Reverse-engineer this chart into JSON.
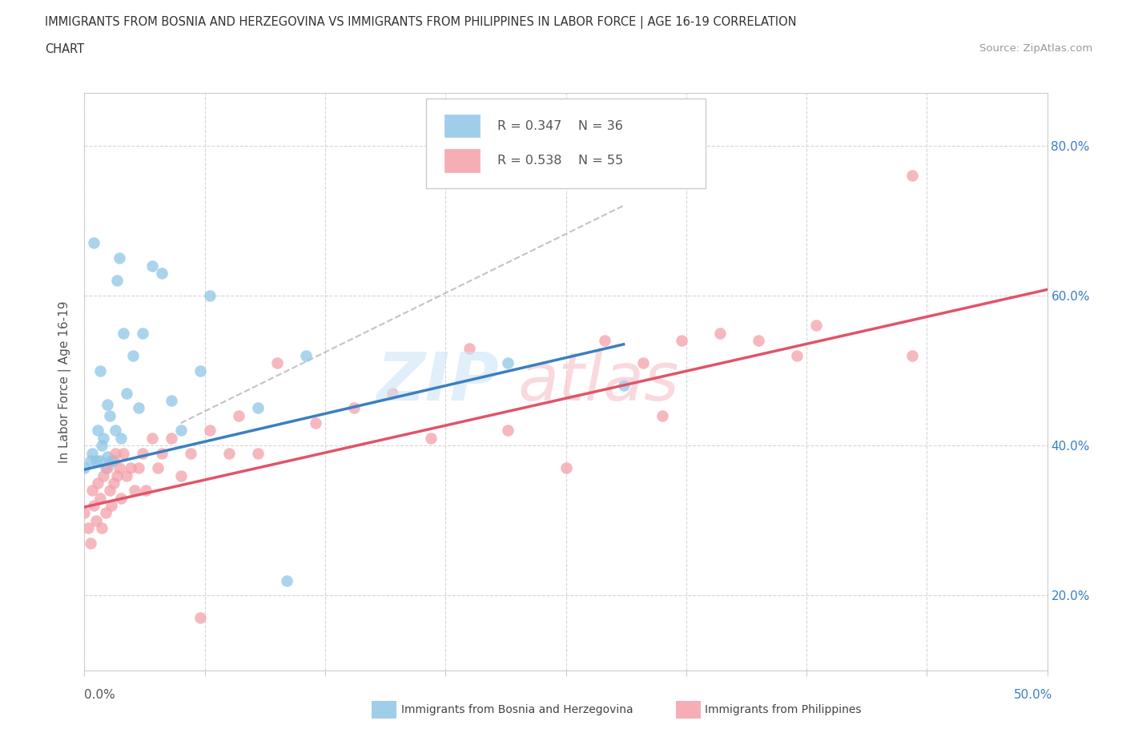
{
  "title_line1": "IMMIGRANTS FROM BOSNIA AND HERZEGOVINA VS IMMIGRANTS FROM PHILIPPINES IN LABOR FORCE | AGE 16-19 CORRELATION",
  "title_line2": "CHART",
  "source": "Source: ZipAtlas.com",
  "ylabel": "In Labor Force | Age 16-19",
  "y_tick_values": [
    0.2,
    0.4,
    0.6,
    0.8
  ],
  "xlim": [
    0.0,
    0.5
  ],
  "ylim": [
    0.1,
    0.87
  ],
  "legend_r1": "R = 0.347",
  "legend_n1": "N = 36",
  "legend_r2": "R = 0.538",
  "legend_n2": "N = 55",
  "bosnia_color": "#8ec6e6",
  "philippines_color": "#f4a0aa",
  "bosnia_line_color": "#3a7fc1",
  "philippines_line_color": "#e0546a",
  "bosnia_line_x": [
    0.0,
    0.28
  ],
  "bosnia_line_y": [
    0.368,
    0.535
  ],
  "philippines_line_x": [
    0.0,
    0.5
  ],
  "philippines_line_y": [
    0.318,
    0.608
  ],
  "dash_line_x": [
    0.05,
    0.28
  ],
  "dash_line_y": [
    0.43,
    0.72
  ],
  "bosnia_scatter_x": [
    0.0,
    0.003,
    0.004,
    0.005,
    0.006,
    0.007,
    0.008,
    0.008,
    0.009,
    0.01,
    0.011,
    0.012,
    0.012,
    0.013,
    0.014,
    0.015,
    0.016,
    0.017,
    0.018,
    0.019,
    0.02,
    0.022,
    0.025,
    0.028,
    0.03,
    0.035,
    0.04,
    0.045,
    0.05,
    0.06,
    0.065,
    0.09,
    0.105,
    0.115,
    0.22,
    0.28
  ],
  "bosnia_scatter_y": [
    0.37,
    0.38,
    0.39,
    0.67,
    0.38,
    0.42,
    0.38,
    0.5,
    0.4,
    0.41,
    0.37,
    0.455,
    0.385,
    0.44,
    0.38,
    0.38,
    0.42,
    0.62,
    0.65,
    0.41,
    0.55,
    0.47,
    0.52,
    0.45,
    0.55,
    0.64,
    0.63,
    0.46,
    0.42,
    0.5,
    0.6,
    0.45,
    0.22,
    0.52,
    0.51,
    0.48
  ],
  "philippines_scatter_x": [
    0.0,
    0.002,
    0.003,
    0.004,
    0.005,
    0.006,
    0.007,
    0.008,
    0.009,
    0.01,
    0.011,
    0.012,
    0.013,
    0.014,
    0.015,
    0.016,
    0.017,
    0.018,
    0.019,
    0.02,
    0.022,
    0.024,
    0.026,
    0.028,
    0.03,
    0.032,
    0.035,
    0.038,
    0.04,
    0.045,
    0.05,
    0.055,
    0.06,
    0.065,
    0.075,
    0.08,
    0.09,
    0.1,
    0.12,
    0.14,
    0.16,
    0.18,
    0.2,
    0.22,
    0.25,
    0.27,
    0.29,
    0.3,
    0.31,
    0.33,
    0.35,
    0.37,
    0.38,
    0.43,
    0.43
  ],
  "philippines_scatter_y": [
    0.31,
    0.29,
    0.27,
    0.34,
    0.32,
    0.3,
    0.35,
    0.33,
    0.29,
    0.36,
    0.31,
    0.37,
    0.34,
    0.32,
    0.35,
    0.39,
    0.36,
    0.37,
    0.33,
    0.39,
    0.36,
    0.37,
    0.34,
    0.37,
    0.39,
    0.34,
    0.41,
    0.37,
    0.39,
    0.41,
    0.36,
    0.39,
    0.17,
    0.42,
    0.39,
    0.44,
    0.39,
    0.51,
    0.43,
    0.45,
    0.47,
    0.41,
    0.53,
    0.42,
    0.37,
    0.54,
    0.51,
    0.44,
    0.54,
    0.55,
    0.54,
    0.52,
    0.56,
    0.52,
    0.76
  ]
}
